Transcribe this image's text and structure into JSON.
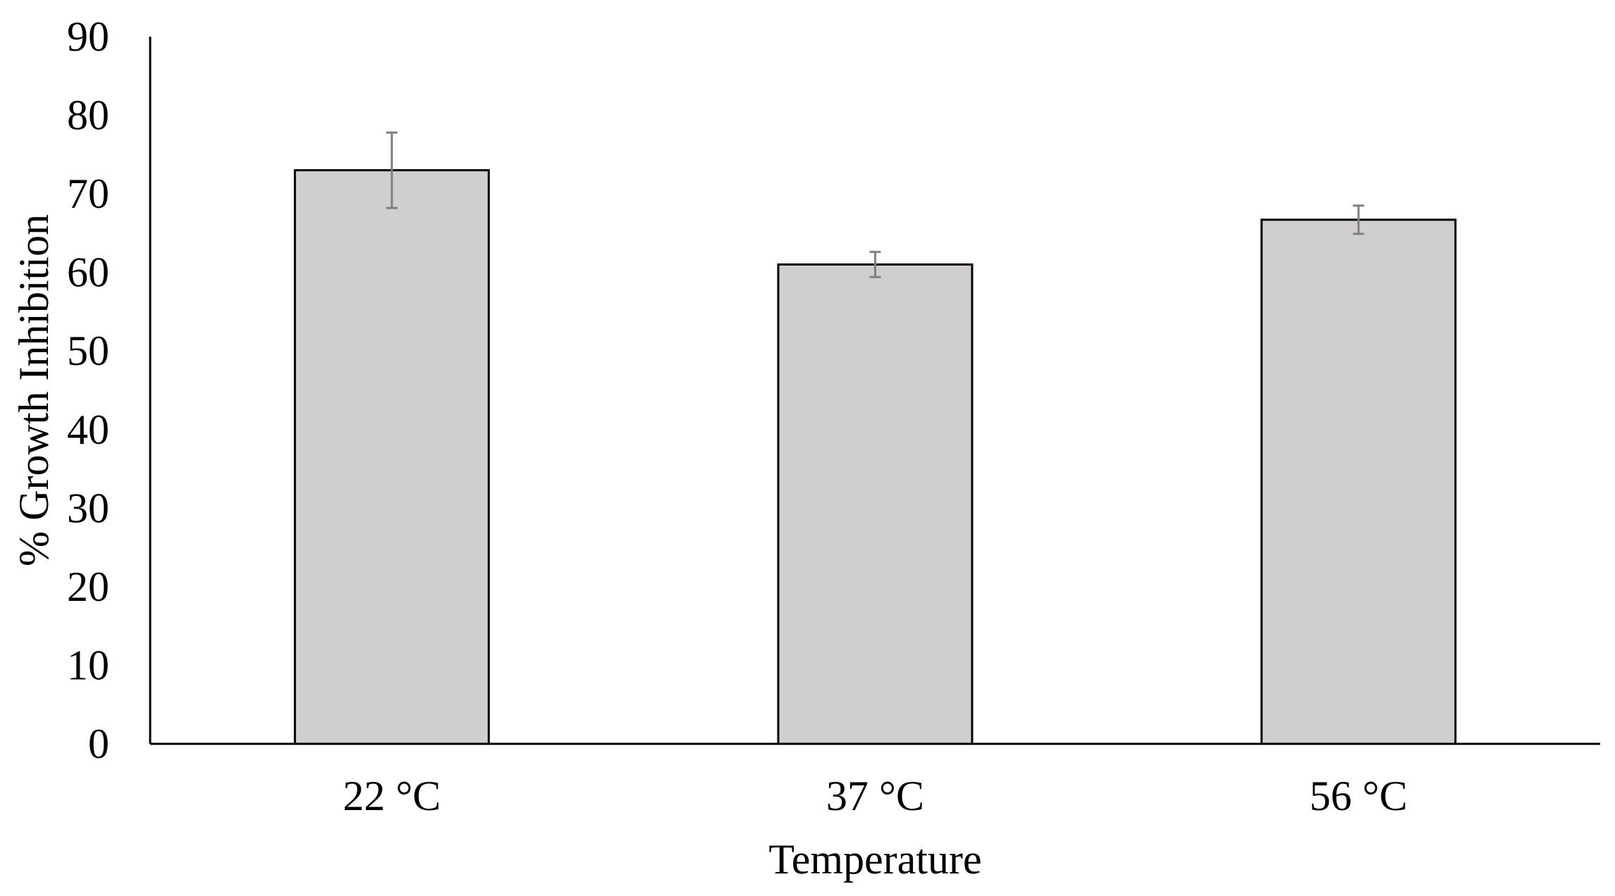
{
  "chart_data": {
    "type": "bar",
    "title": "",
    "xlabel": "Temperature",
    "ylabel": "% Growth Inhibition",
    "categories": [
      "22 °C",
      "37 °C",
      "56 °C"
    ],
    "values": [
      73,
      61,
      66.7
    ],
    "errors": [
      4.8,
      1.6,
      1.8
    ],
    "ylim": [
      0,
      90
    ],
    "yticks": [
      "0",
      "10",
      "20",
      "30",
      "40",
      "50",
      "60",
      "70",
      "80",
      "90"
    ],
    "grid": false,
    "legend": "none",
    "colors": {
      "bar_fill": "#d0cfcd",
      "bar_stroke": "#000000",
      "error_bar": "#7f7f7f",
      "axis": "#000000"
    }
  }
}
